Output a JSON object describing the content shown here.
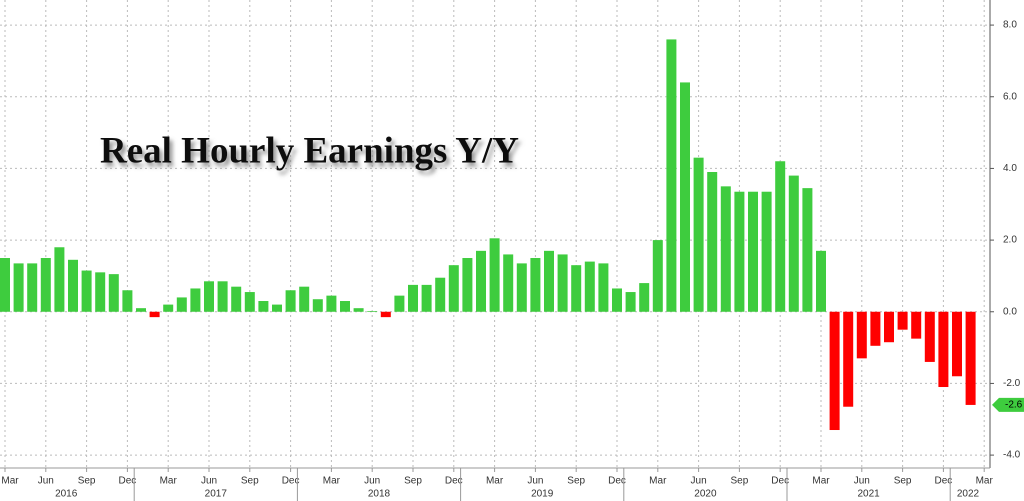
{
  "chart_data": {
    "type": "bar",
    "title": "Real Hourly Earnings Y/Y",
    "x": [
      "2016-03",
      "2016-04",
      "2016-05",
      "2016-06",
      "2016-07",
      "2016-08",
      "2016-09",
      "2016-10",
      "2016-11",
      "2016-12",
      "2017-01",
      "2017-02",
      "2017-03",
      "2017-04",
      "2017-05",
      "2017-06",
      "2017-07",
      "2017-08",
      "2017-09",
      "2017-10",
      "2017-11",
      "2017-12",
      "2018-01",
      "2018-02",
      "2018-03",
      "2018-04",
      "2018-05",
      "2018-06",
      "2018-07",
      "2018-08",
      "2018-09",
      "2018-10",
      "2018-11",
      "2018-12",
      "2019-01",
      "2019-02",
      "2019-03",
      "2019-04",
      "2019-05",
      "2019-06",
      "2019-07",
      "2019-08",
      "2019-09",
      "2019-10",
      "2019-11",
      "2019-12",
      "2020-01",
      "2020-02",
      "2020-03",
      "2020-04",
      "2020-05",
      "2020-06",
      "2020-07",
      "2020-08",
      "2020-09",
      "2020-10",
      "2020-11",
      "2020-12",
      "2021-01",
      "2021-02",
      "2021-03",
      "2021-04",
      "2021-05",
      "2021-06",
      "2021-07",
      "2021-08",
      "2021-09",
      "2021-10",
      "2021-11",
      "2021-12",
      "2022-01",
      "2022-02"
    ],
    "values": [
      1.5,
      1.35,
      1.35,
      1.5,
      1.8,
      1.45,
      1.15,
      1.1,
      1.05,
      0.6,
      0.1,
      -0.15,
      0.2,
      0.4,
      0.65,
      0.85,
      0.85,
      0.7,
      0.55,
      0.3,
      0.2,
      0.6,
      0.7,
      0.35,
      0.45,
      0.3,
      0.1,
      0.02,
      -0.15,
      0.45,
      0.75,
      0.75,
      0.95,
      1.3,
      1.5,
      1.7,
      2.05,
      1.6,
      1.35,
      1.5,
      1.7,
      1.6,
      1.3,
      1.4,
      1.35,
      0.65,
      0.55,
      0.8,
      2.0,
      7.6,
      6.4,
      4.3,
      3.9,
      3.5,
      3.35,
      3.35,
      3.35,
      4.2,
      3.8,
      3.45,
      1.7,
      -3.3,
      -2.65,
      -1.3,
      -0.95,
      -0.85,
      -0.5,
      -0.75,
      -1.4,
      -2.1,
      -1.8,
      -2.6
    ],
    "color": "#3ecc3e",
    "negative_color": "#ff0000",
    "grid": true,
    "ylim": [
      -4.36,
      8.7
    ],
    "yticks": [
      {
        "value": -4,
        "label": "-4.0"
      },
      {
        "value": -2,
        "label": "-2.0"
      },
      {
        "value": 0,
        "label": "0.0"
      },
      {
        "value": 2,
        "label": "2.0"
      },
      {
        "value": 4,
        "label": "4.0"
      },
      {
        "value": 6,
        "label": "6.0"
      },
      {
        "value": 8,
        "label": "8.0"
      }
    ],
    "xticks": [
      {
        "value": "2016-03",
        "label": "Mar"
      },
      {
        "value": "2016-06",
        "label": "Jun"
      },
      {
        "value": "2016-09",
        "label": "Sep"
      },
      {
        "value": "2016-12",
        "label": "Dec"
      },
      {
        "value": "2017-03",
        "label": "Mar"
      },
      {
        "value": "2017-06",
        "label": "Jun"
      },
      {
        "value": "2017-09",
        "label": "Sep"
      },
      {
        "value": "2017-12",
        "label": "Dec"
      },
      {
        "value": "2018-03",
        "label": "Mar"
      },
      {
        "value": "2018-06",
        "label": "Jun"
      },
      {
        "value": "2018-09",
        "label": "Sep"
      },
      {
        "value": "2018-12",
        "label": "Dec"
      },
      {
        "value": "2019-03",
        "label": "Mar"
      },
      {
        "value": "2019-06",
        "label": "Jun"
      },
      {
        "value": "2019-09",
        "label": "Sep"
      },
      {
        "value": "2019-12",
        "label": "Dec"
      },
      {
        "value": "2020-03",
        "label": "Mar"
      },
      {
        "value": "2020-06",
        "label": "Jun"
      },
      {
        "value": "2020-09",
        "label": "Sep"
      },
      {
        "value": "2020-12",
        "label": "Dec"
      },
      {
        "value": "2021-03",
        "label": "Mar"
      },
      {
        "value": "2021-06",
        "label": "Jun"
      },
      {
        "value": "2021-09",
        "label": "Sep"
      },
      {
        "value": "2021-12",
        "label": "Dec"
      },
      {
        "value": "2022-03",
        "label": "Mar"
      }
    ],
    "year_labels": [
      "2016",
      "2017",
      "2018",
      "2019",
      "2020",
      "2021",
      "2022"
    ]
  }
}
